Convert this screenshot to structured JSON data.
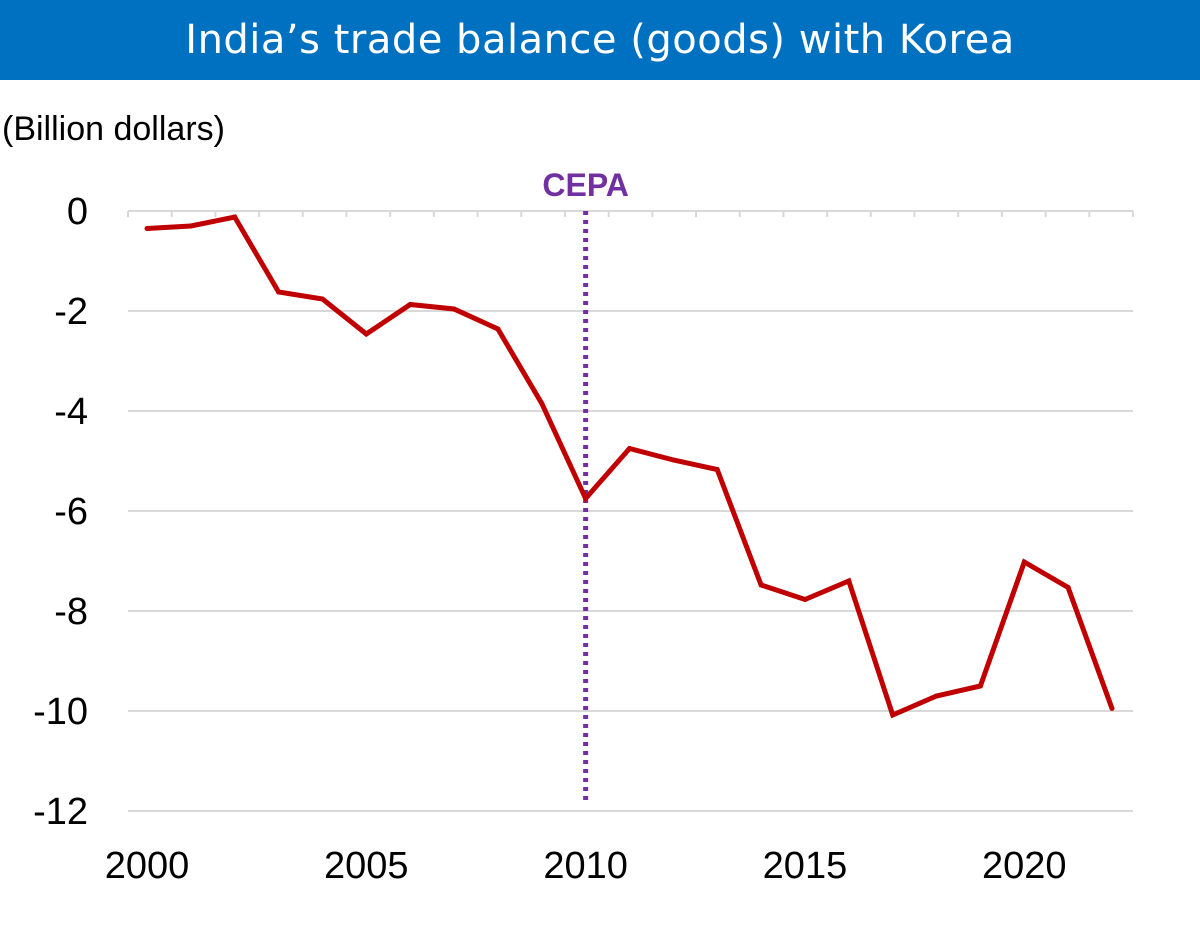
{
  "title": "India’s trade balance (goods) with Korea",
  "colors": {
    "title_bg": "#0070c0",
    "line": "#c00000",
    "cepa": "#7030a0",
    "grid": "#d9d9d9"
  },
  "chart_data": {
    "type": "line",
    "title": "India’s trade balance (goods) with Korea",
    "ylabel": "(Billion dollars)",
    "xlabel": "",
    "x": [
      2000,
      2001,
      2002,
      2003,
      2004,
      2005,
      2006,
      2007,
      2008,
      2009,
      2010,
      2011,
      2012,
      2013,
      2014,
      2015,
      2016,
      2017,
      2018,
      2019,
      2020,
      2021,
      2022
    ],
    "series": [
      {
        "name": "Trade balance",
        "values": [
          -0.35,
          -0.3,
          -0.12,
          -1.62,
          -1.76,
          -2.46,
          -1.87,
          -1.96,
          -2.36,
          -3.85,
          -5.75,
          -4.75,
          -4.98,
          -5.17,
          -7.48,
          -7.77,
          -7.4,
          -10.08,
          -9.7,
          -9.5,
          -7.02,
          -7.53,
          -9.95
        ]
      }
    ],
    "ylim": [
      -12,
      0
    ],
    "xlim": [
      2000,
      2022
    ],
    "yticks": [
      0,
      -2,
      -4,
      -6,
      -8,
      -10,
      -12
    ],
    "ytick_labels": [
      "0",
      "-2",
      "-4",
      "-6",
      "-8",
      "-10",
      "-12"
    ],
    "xticks": [
      2000,
      2005,
      2010,
      2015,
      2020
    ],
    "xtick_labels": [
      "2000",
      "2005",
      "2010",
      "2015",
      "2020"
    ],
    "grid": true,
    "annotations": [
      {
        "label": "CEPA",
        "x": 2010,
        "style": "dotted-vertical-line"
      }
    ]
  }
}
